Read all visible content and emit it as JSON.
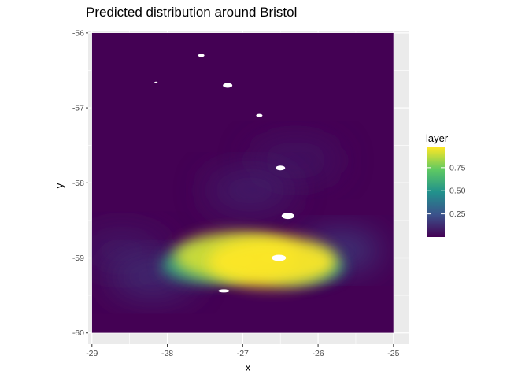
{
  "chart_data": {
    "type": "heatmap",
    "title": "Predicted distribution around Bristol",
    "xlabel": "x",
    "ylabel": "y",
    "xlim": [
      -29.05,
      -24.8
    ],
    "ylim": [
      -60.15,
      -55.97
    ],
    "x_ticks": [
      -29,
      -28,
      -27,
      -26,
      -25
    ],
    "x_tick_labels": [
      "-29",
      "-28",
      "-27",
      "-26",
      "-25"
    ],
    "y_ticks": [
      -56,
      -57,
      -58,
      -59,
      -60
    ],
    "y_tick_labels": [
      "-56",
      "-57",
      "-58",
      "-59",
      "-60"
    ],
    "grid": true,
    "raster_extent": {
      "x": [
        -29,
        -25
      ],
      "y": [
        -60,
        -56
      ]
    },
    "colorscale": "viridis",
    "colorscale_stops": [
      "#440154",
      "#3b528b",
      "#21918c",
      "#5ec962",
      "#fde725"
    ],
    "background_color": "#440154",
    "panel_color": "#ebebeb",
    "legend": {
      "title": "layer",
      "position": "right",
      "breaks": [
        0.25,
        0.5,
        0.75
      ],
      "break_labels": [
        "0.25",
        "0.50",
        "0.75"
      ],
      "range": [
        0,
        0.97
      ]
    },
    "hotspots": [
      {
        "x": -26.6,
        "y": -59.05,
        "value": 0.97
      },
      {
        "x": -27.1,
        "y": -58.98,
        "value": 0.9
      },
      {
        "x": -27.5,
        "y": -59.1,
        "value": 0.55
      },
      {
        "x": -26.2,
        "y": -59.12,
        "value": 0.5
      },
      {
        "x": -25.7,
        "y": -58.9,
        "value": 0.25
      },
      {
        "x": -28.2,
        "y": -59.25,
        "value": 0.18
      },
      {
        "x": -26.9,
        "y": -58.1,
        "value": 0.12
      },
      {
        "x": -26.3,
        "y": -57.7,
        "value": 0.08
      },
      {
        "x": -28.6,
        "y": -58.9,
        "value": 0.1
      }
    ],
    "islands": [
      {
        "x": -26.52,
        "y": -59.0
      },
      {
        "x": -26.4,
        "y": -58.44
      },
      {
        "x": -26.5,
        "y": -57.8
      },
      {
        "x": -27.2,
        "y": -56.7
      },
      {
        "x": -27.55,
        "y": -56.3
      },
      {
        "x": -26.78,
        "y": -57.1
      },
      {
        "x": -27.25,
        "y": -59.44
      },
      {
        "x": -28.15,
        "y": -56.66
      }
    ]
  }
}
